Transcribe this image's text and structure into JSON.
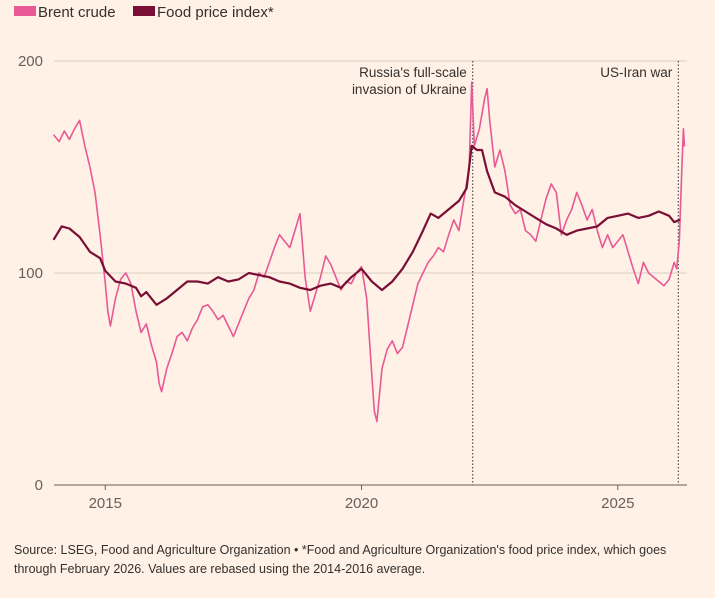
{
  "chart_data": {
    "type": "line",
    "x_range": [
      2014.0,
      2026.35
    ],
    "ylim": [
      0,
      200
    ],
    "y_ticks": [
      {
        "value": 0,
        "label": "0"
      },
      {
        "value": 100,
        "label": "100"
      },
      {
        "value": 200,
        "label": "200"
      }
    ],
    "x_ticks": [
      {
        "value": 2015,
        "label": "2015"
      },
      {
        "value": 2020,
        "label": "2020"
      },
      {
        "value": 2025,
        "label": "2025"
      }
    ],
    "grid": true,
    "legend_position": "top-left",
    "series": [
      {
        "name": "Brent crude",
        "color": "#e75a95",
        "points": [
          [
            2014.0,
            165
          ],
          [
            2014.1,
            162
          ],
          [
            2014.2,
            167
          ],
          [
            2014.3,
            163
          ],
          [
            2014.4,
            168
          ],
          [
            2014.5,
            172
          ],
          [
            2014.6,
            160
          ],
          [
            2014.7,
            150
          ],
          [
            2014.8,
            138
          ],
          [
            2014.9,
            118
          ],
          [
            2015.0,
            95
          ],
          [
            2015.05,
            82
          ],
          [
            2015.1,
            75
          ],
          [
            2015.2,
            88
          ],
          [
            2015.3,
            97
          ],
          [
            2015.4,
            100
          ],
          [
            2015.5,
            95
          ],
          [
            2015.6,
            82
          ],
          [
            2015.7,
            72
          ],
          [
            2015.8,
            76
          ],
          [
            2015.9,
            66
          ],
          [
            2016.0,
            58
          ],
          [
            2016.05,
            48
          ],
          [
            2016.1,
            44
          ],
          [
            2016.2,
            55
          ],
          [
            2016.3,
            62
          ],
          [
            2016.4,
            70
          ],
          [
            2016.5,
            72
          ],
          [
            2016.6,
            68
          ],
          [
            2016.7,
            74
          ],
          [
            2016.8,
            78
          ],
          [
            2016.9,
            84
          ],
          [
            2017.0,
            85
          ],
          [
            2017.1,
            82
          ],
          [
            2017.2,
            78
          ],
          [
            2017.3,
            80
          ],
          [
            2017.4,
            75
          ],
          [
            2017.5,
            70
          ],
          [
            2017.6,
            76
          ],
          [
            2017.7,
            82
          ],
          [
            2017.8,
            88
          ],
          [
            2017.9,
            92
          ],
          [
            2018.0,
            100
          ],
          [
            2018.1,
            98
          ],
          [
            2018.2,
            105
          ],
          [
            2018.3,
            112
          ],
          [
            2018.4,
            118
          ],
          [
            2018.5,
            115
          ],
          [
            2018.6,
            112
          ],
          [
            2018.7,
            120
          ],
          [
            2018.8,
            128
          ],
          [
            2018.9,
            98
          ],
          [
            2019.0,
            82
          ],
          [
            2019.1,
            90
          ],
          [
            2019.2,
            98
          ],
          [
            2019.3,
            108
          ],
          [
            2019.4,
            104
          ],
          [
            2019.5,
            98
          ],
          [
            2019.6,
            92
          ],
          [
            2019.7,
            96
          ],
          [
            2019.8,
            95
          ],
          [
            2019.9,
            100
          ],
          [
            2020.0,
            103
          ],
          [
            2020.1,
            88
          ],
          [
            2020.2,
            52
          ],
          [
            2020.25,
            35
          ],
          [
            2020.3,
            30
          ],
          [
            2020.4,
            55
          ],
          [
            2020.5,
            64
          ],
          [
            2020.6,
            68
          ],
          [
            2020.7,
            62
          ],
          [
            2020.8,
            65
          ],
          [
            2020.9,
            75
          ],
          [
            2021.0,
            85
          ],
          [
            2021.1,
            95
          ],
          [
            2021.2,
            100
          ],
          [
            2021.3,
            105
          ],
          [
            2021.4,
            108
          ],
          [
            2021.5,
            112
          ],
          [
            2021.6,
            110
          ],
          [
            2021.7,
            118
          ],
          [
            2021.8,
            125
          ],
          [
            2021.9,
            120
          ],
          [
            2022.0,
            135
          ],
          [
            2022.1,
            150
          ],
          [
            2022.15,
            190
          ],
          [
            2022.2,
            160
          ],
          [
            2022.3,
            168
          ],
          [
            2022.4,
            182
          ],
          [
            2022.45,
            187
          ],
          [
            2022.5,
            172
          ],
          [
            2022.6,
            150
          ],
          [
            2022.7,
            158
          ],
          [
            2022.8,
            148
          ],
          [
            2022.9,
            132
          ],
          [
            2023.0,
            128
          ],
          [
            2023.1,
            130
          ],
          [
            2023.2,
            120
          ],
          [
            2023.3,
            118
          ],
          [
            2023.4,
            115
          ],
          [
            2023.5,
            125
          ],
          [
            2023.6,
            135
          ],
          [
            2023.7,
            142
          ],
          [
            2023.8,
            138
          ],
          [
            2023.9,
            118
          ],
          [
            2024.0,
            125
          ],
          [
            2024.1,
            130
          ],
          [
            2024.2,
            138
          ],
          [
            2024.3,
            132
          ],
          [
            2024.4,
            125
          ],
          [
            2024.5,
            130
          ],
          [
            2024.6,
            120
          ],
          [
            2024.7,
            112
          ],
          [
            2024.8,
            118
          ],
          [
            2024.9,
            112
          ],
          [
            2025.0,
            115
          ],
          [
            2025.1,
            118
          ],
          [
            2025.2,
            110
          ],
          [
            2025.3,
            102
          ],
          [
            2025.4,
            95
          ],
          [
            2025.5,
            105
          ],
          [
            2025.6,
            100
          ],
          [
            2025.7,
            98
          ],
          [
            2025.8,
            96
          ],
          [
            2025.9,
            94
          ],
          [
            2026.0,
            97
          ],
          [
            2026.1,
            105
          ],
          [
            2026.15,
            102
          ],
          [
            2026.2,
            115
          ],
          [
            2026.25,
            150
          ],
          [
            2026.28,
            168
          ],
          [
            2026.3,
            160
          ]
        ]
      },
      {
        "name": "Food price index*",
        "color": "#790f35",
        "points": [
          [
            2014.0,
            116
          ],
          [
            2014.15,
            122
          ],
          [
            2014.3,
            121
          ],
          [
            2014.5,
            117
          ],
          [
            2014.7,
            110
          ],
          [
            2014.9,
            107
          ],
          [
            2015.0,
            101
          ],
          [
            2015.2,
            96
          ],
          [
            2015.4,
            95
          ],
          [
            2015.6,
            93
          ],
          [
            2015.7,
            89
          ],
          [
            2015.8,
            91
          ],
          [
            2015.9,
            88
          ],
          [
            2016.0,
            85
          ],
          [
            2016.2,
            88
          ],
          [
            2016.4,
            92
          ],
          [
            2016.6,
            96
          ],
          [
            2016.8,
            96
          ],
          [
            2017.0,
            95
          ],
          [
            2017.2,
            98
          ],
          [
            2017.4,
            96
          ],
          [
            2017.6,
            97
          ],
          [
            2017.8,
            100
          ],
          [
            2018.0,
            99
          ],
          [
            2018.2,
            98
          ],
          [
            2018.4,
            96
          ],
          [
            2018.6,
            95
          ],
          [
            2018.8,
            93
          ],
          [
            2019.0,
            92
          ],
          [
            2019.2,
            94
          ],
          [
            2019.4,
            95
          ],
          [
            2019.6,
            93
          ],
          [
            2019.8,
            98
          ],
          [
            2020.0,
            102
          ],
          [
            2020.2,
            96
          ],
          [
            2020.4,
            92
          ],
          [
            2020.6,
            96
          ],
          [
            2020.8,
            102
          ],
          [
            2021.0,
            110
          ],
          [
            2021.2,
            120
          ],
          [
            2021.35,
            128
          ],
          [
            2021.5,
            126
          ],
          [
            2021.7,
            130
          ],
          [
            2021.9,
            134
          ],
          [
            2022.05,
            140
          ],
          [
            2022.15,
            160
          ],
          [
            2022.25,
            158
          ],
          [
            2022.35,
            158
          ],
          [
            2022.45,
            148
          ],
          [
            2022.6,
            138
          ],
          [
            2022.8,
            136
          ],
          [
            2023.0,
            132
          ],
          [
            2023.2,
            129
          ],
          [
            2023.4,
            126
          ],
          [
            2023.6,
            123
          ],
          [
            2023.8,
            121
          ],
          [
            2024.0,
            118
          ],
          [
            2024.2,
            120
          ],
          [
            2024.4,
            121
          ],
          [
            2024.6,
            122
          ],
          [
            2024.8,
            126
          ],
          [
            2025.0,
            127
          ],
          [
            2025.2,
            128
          ],
          [
            2025.4,
            126
          ],
          [
            2025.6,
            127
          ],
          [
            2025.8,
            129
          ],
          [
            2026.0,
            127
          ],
          [
            2026.1,
            124
          ],
          [
            2026.2,
            125
          ]
        ]
      }
    ],
    "events": [
      {
        "x": 2022.17,
        "lines": [
          "Russia's full-scale",
          "invasion of Ukraine"
        ]
      },
      {
        "x": 2026.18,
        "lines": [
          "US-Iran war"
        ]
      }
    ]
  },
  "source_note": "Source: LSEG, Food and Agriculture Organization • *Food and Agriculture Organization's food price index, which goes through February 2026. Values are rebased using the 2014-2016 average."
}
